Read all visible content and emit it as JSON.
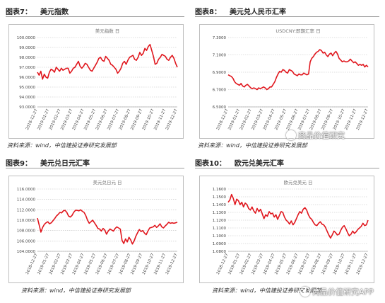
{
  "figures": [
    {
      "fig_label": "图表7：",
      "fig_name": "美元指数",
      "source": "资料来源：wind，中信建投证券研究发展部",
      "chart_data": {
        "type": "line",
        "title": "美元指数 日",
        "ylim": [
          93,
          100
        ],
        "yticks": [
          "93.0000",
          "94.0000",
          "95.0000",
          "96.0000",
          "97.0000",
          "98.0000",
          "99.0000",
          "100.0000"
        ],
        "ytick_values": [
          93,
          94,
          95,
          96,
          97,
          98,
          99,
          100
        ],
        "xticks": [
          "2018-12-27",
          "2019-01-27",
          "2019-02-27",
          "2019-03-27",
          "2019-04-27",
          "2019-05-27",
          "2019-06-27",
          "2019-07-27",
          "2019-08-27",
          "2019-09-27",
          "2019-10-27",
          "2019-11-27",
          "2019-12-27"
        ],
        "color": "#e0161d",
        "series": [
          {
            "values": [
              96.5,
              96.2,
              96.6,
              95.8,
              96.3,
              96.0,
              95.9,
              96.5,
              96.8,
              96.7,
              96.5,
              97.0,
              96.8,
              96.6,
              96.9,
              96.7,
              96.8,
              96.9,
              96.9,
              96.4,
              96.6,
              96.9,
              97.0,
              97.3,
              97.6,
              97.1,
              96.9,
              97.1,
              97.4,
              97.3,
              97.0,
              96.7,
              96.6,
              96.9,
              97.2,
              97.5,
              97.9,
              98.0,
              97.7,
              97.6,
              98.1,
              97.9,
              97.7,
              97.3,
              97.2,
              97.0,
              96.8,
              96.4,
              96.6,
              96.9,
              97.4,
              97.6,
              97.3,
              97.7,
              98.0,
              98.1,
              98.2,
              97.8,
              97.7,
              98.0,
              98.5,
              98.2,
              98.4,
              98.9,
              98.7,
              99.1,
              99.3,
              98.7,
              98.1,
              97.3,
              97.4,
              97.8,
              98.0,
              98.3,
              98.2,
              98.1,
              97.8,
              97.7,
              98.0,
              98.2,
              97.9,
              97.4,
              97.0
            ]
          }
        ]
      }
    },
    {
      "fig_label": "图表8：",
      "fig_name": "美元兑人民币汇率",
      "source": "资料来源：wind，中信建投证券研究发展部",
      "chart_data": {
        "type": "line",
        "title": "USDCNY:即期汇率 日",
        "ylim": [
          6.5,
          7.3
        ],
        "yticks": [
          "6.5000",
          "6.7000",
          "6.9000",
          "7.1000",
          "7.3000"
        ],
        "ytick_values": [
          6.5,
          6.7,
          6.9,
          7.1,
          7.3
        ],
        "xticks": [
          "2018-12-27",
          "2019-01-27",
          "2019-02-27",
          "2019-03-27",
          "2019-04-27",
          "2019-05-27",
          "2019-06-27",
          "2019-07-27",
          "2019-08-27",
          "2019-09-27",
          "2019-10-27",
          "2019-11-27",
          "2019-12-27"
        ],
        "color": "#e0161d",
        "series": [
          {
            "values": [
              6.87,
              6.86,
              6.85,
              6.83,
              6.79,
              6.77,
              6.76,
              6.75,
              6.77,
              6.74,
              6.73,
              6.75,
              6.76,
              6.74,
              6.72,
              6.71,
              6.72,
              6.71,
              6.7,
              6.72,
              6.71,
              6.72,
              6.73,
              6.72,
              6.7,
              6.71,
              6.73,
              6.73,
              6.76,
              6.79,
              6.84,
              6.88,
              6.91,
              6.9,
              6.93,
              6.92,
              6.9,
              6.89,
              6.93,
              6.92,
              6.91,
              6.88,
              6.87,
              6.86,
              6.88,
              6.87,
              6.87,
              6.89,
              6.88,
              6.87,
              6.88,
              7.02,
              7.06,
              7.08,
              7.11,
              7.13,
              7.14,
              7.16,
              7.15,
              7.12,
              7.13,
              7.1,
              7.08,
              7.11,
              7.12,
              7.09,
              7.12,
              7.14,
              7.11,
              7.06,
              7.04,
              7.02,
              7.03,
              7.02,
              7.02,
              7.03,
              7.05,
              7.03,
              7.01,
              7.02,
              7.0,
              6.98,
              6.99,
              6.98,
              6.99,
              6.96,
              6.98,
              6.96
            ]
          }
        ]
      }
    },
    {
      "fig_label": "图表9：",
      "fig_name": "美元兑日元汇率",
      "source": "资料来源：wind，中信建投证券研究发展部",
      "chart_data": {
        "type": "line",
        "title": "美元兑日元 日",
        "ylim": [
          104,
          116
        ],
        "yticks": [
          "104.0000",
          "106.0000",
          "108.0000",
          "110.0000",
          "112.0000",
          "114.0000",
          "116.0000"
        ],
        "ytick_values": [
          104,
          106,
          108,
          110,
          112,
          114,
          116
        ],
        "xticks": [
          "2018-12-27",
          "2019-01-27",
          "2019-02-27",
          "2019-03-27",
          "2019-04-27",
          "2019-05-27",
          "2019-06-27",
          "2019-07-27",
          "2019-08-27",
          "2019-09-27",
          "2019-10-27",
          "2019-11-27",
          "2019-12-27"
        ],
        "color": "#e0161d",
        "series": [
          {
            "values": [
              110.4,
              109.1,
              107.7,
              108.6,
              109.2,
              109.5,
              109.7,
              109.3,
              109.5,
              109.9,
              110.3,
              110.8,
              111.1,
              111.5,
              111.4,
              111.8,
              111.9,
              111.5,
              110.8,
              110.6,
              110.9,
              111.5,
              111.9,
              111.9,
              111.8,
              112.0,
              111.7,
              111.5,
              110.9,
              110.0,
              109.4,
              109.7,
              110.0,
              109.5,
              109.0,
              108.4,
              108.3,
              107.9,
              108.4,
              108.1,
              107.3,
              107.9,
              108.3,
              108.1,
              107.9,
              108.4,
              108.7,
              108.5,
              108.3,
              106.1,
              105.5,
              106.4,
              105.8,
              106.7,
              106.2,
              105.4,
              106.0,
              106.9,
              107.6,
              108.2,
              107.8,
              108.0,
              107.5,
              107.2,
              107.9,
              108.5,
              108.6,
              108.7,
              109.0,
              108.6,
              108.9,
              109.3,
              108.7,
              108.5,
              108.9,
              109.2,
              109.6,
              109.4,
              109.5,
              109.4,
              109.5,
              109.6
            ]
          }
        ]
      }
    },
    {
      "fig_label": "图表10：",
      "fig_name": "欧元兑美元汇率",
      "source": "资料来源：wind，中信建投证券研究发展部",
      "chart_data": {
        "type": "line",
        "title": "欧元兑美元 日",
        "ylim": [
          1.08,
          1.16
        ],
        "yticks": [
          "1.0800",
          "1.0900",
          "1.1000",
          "1.1100",
          "1.1200",
          "1.1300",
          "1.1400",
          "1.1500",
          "1.1600"
        ],
        "ytick_values": [
          1.08,
          1.09,
          1.1,
          1.11,
          1.12,
          1.13,
          1.14,
          1.15,
          1.16
        ],
        "xticks": [
          "2018-12-27",
          "2019-01-27",
          "2019-02-27",
          "2019-03-27",
          "2019-04-27",
          "2019-05-27",
          "2019-06-27",
          "2019-07-27",
          "2019-08-27",
          "2019-09-27",
          "2019-10-27",
          "2019-11-27",
          "2019-12-27"
        ],
        "color": "#e0161d",
        "series": [
          {
            "values": [
              1.143,
              1.146,
              1.153,
              1.148,
              1.14,
              1.147,
              1.145,
              1.14,
              1.143,
              1.137,
              1.142,
              1.14,
              1.135,
              1.133,
              1.137,
              1.132,
              1.129,
              1.135,
              1.131,
              1.134,
              1.128,
              1.122,
              1.127,
              1.125,
              1.131,
              1.128,
              1.129,
              1.124,
              1.127,
              1.121,
              1.126,
              1.131,
              1.13,
              1.124,
              1.12,
              1.118,
              1.115,
              1.119,
              1.114,
              1.117,
              1.122,
              1.127,
              1.131,
              1.129,
              1.134,
              1.136,
              1.133,
              1.127,
              1.123,
              1.121,
              1.117,
              1.114,
              1.113,
              1.116,
              1.118,
              1.115,
              1.114,
              1.111,
              1.106,
              1.101,
              1.097,
              1.101,
              1.106,
              1.104,
              1.101,
              1.102,
              1.107,
              1.111,
              1.113,
              1.109,
              1.104,
              1.1,
              1.102,
              1.106,
              1.103,
              1.105,
              1.108,
              1.11,
              1.112,
              1.116,
              1.113,
              1.114,
              1.12
            ]
          }
        ]
      }
    }
  ],
  "watermarks": [
    "商品价值研究",
    "商品价值研究APP"
  ]
}
